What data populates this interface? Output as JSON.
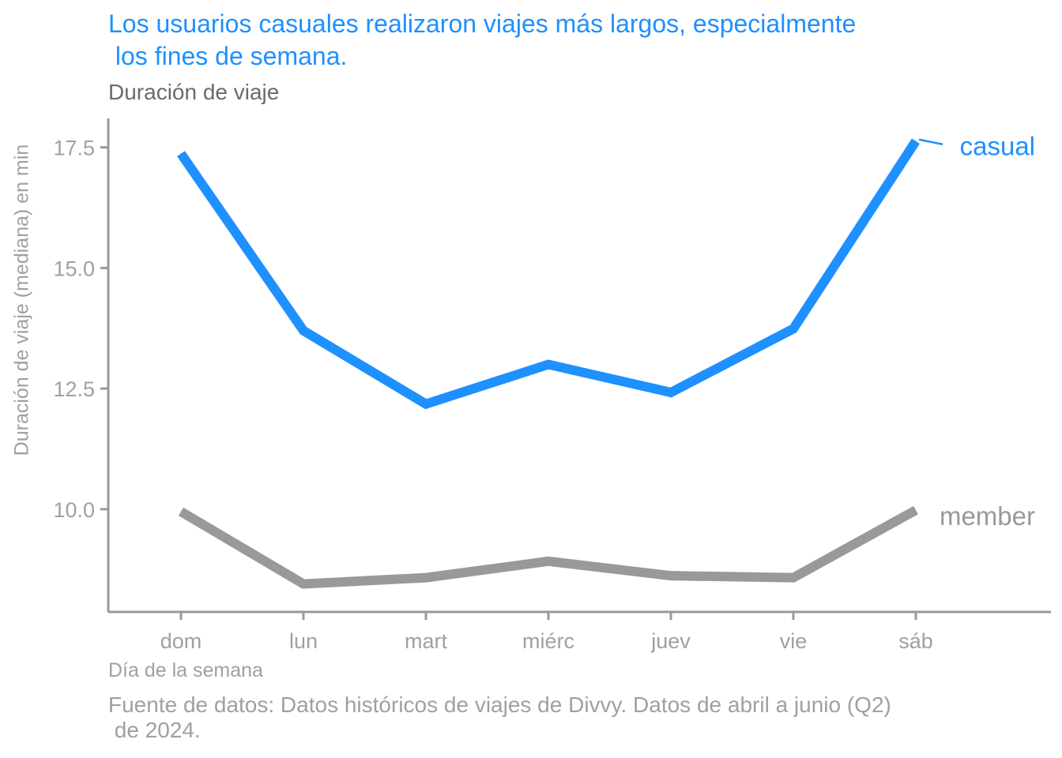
{
  "chart_data": {
    "type": "line",
    "title_lines": [
      "Los usuarios casuales realizaron viajes más largos, especialmente",
      " los fines de semana."
    ],
    "subtitle": "Duración de viaje",
    "xlabel": "Día de la semana",
    "ylabel": "Duración de viaje (mediana) en min",
    "caption_lines": [
      "Fuente de datos: Datos históricos de viajes de Divvy. Datos de abril a junio (Q2)",
      " de 2024."
    ],
    "categories": [
      "dom",
      "lun",
      "mart",
      "miérc",
      "juev",
      "vie",
      "sáb"
    ],
    "yticks": [
      "10.0",
      "12.5",
      "15.0",
      "17.5"
    ],
    "ylim": [
      7.87,
      18.1
    ],
    "grid": false,
    "legend": "direct labels at line ends (right)",
    "series": [
      {
        "name": "casual",
        "color": "#1e90ff",
        "values": [
          17.37,
          13.7,
          12.18,
          13.0,
          12.42,
          13.74,
          17.63
        ]
      },
      {
        "name": "member",
        "color": "#999999",
        "values": [
          9.95,
          8.45,
          8.58,
          8.92,
          8.62,
          8.58,
          9.98
        ]
      }
    ]
  }
}
